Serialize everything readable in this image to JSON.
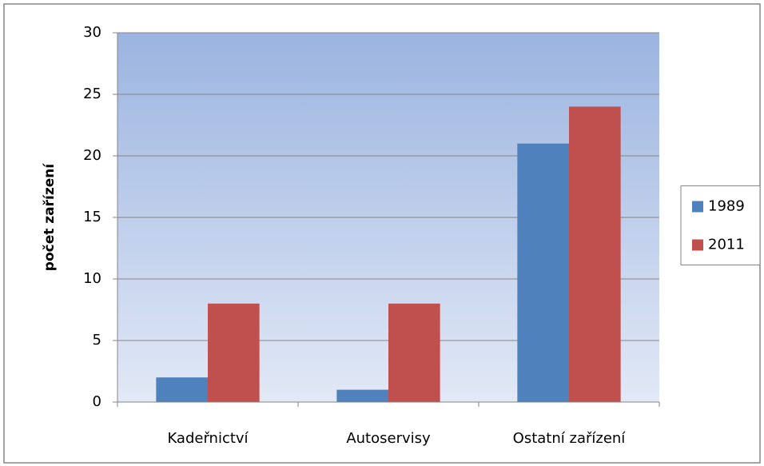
{
  "chart_data": {
    "type": "bar",
    "y_label": "počet zařízení",
    "categories": [
      "Kadeřnictví",
      "Autoservisy",
      "Ostatní zařízení"
    ],
    "series": [
      {
        "name": "1989",
        "color": "#4f81bd",
        "values": [
          2,
          1,
          21
        ]
      },
      {
        "name": "2011",
        "color": "#c0504d",
        "values": [
          8,
          8,
          24
        ]
      }
    ],
    "ylim": [
      0,
      30
    ],
    "yticks": [
      0,
      5,
      10,
      15,
      20,
      25,
      30
    ],
    "grid": true,
    "legend": "right"
  }
}
